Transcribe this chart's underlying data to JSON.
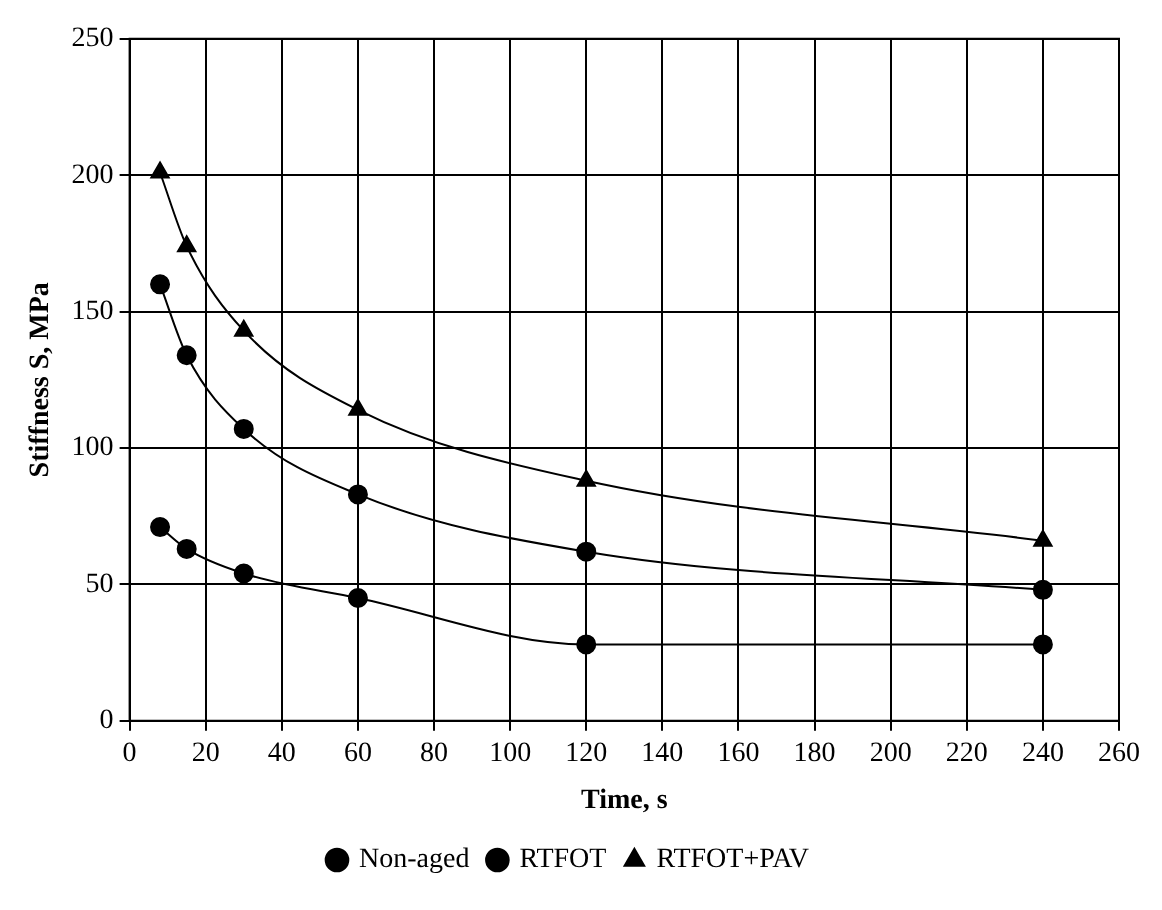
{
  "chart_data": {
    "type": "line",
    "xlabel": "Time, s",
    "ylabel": "Stiffness S, MPa",
    "x": [
      8,
      15,
      30,
      60,
      120,
      240
    ],
    "series": [
      {
        "name": "Non-aged",
        "color": "#000000",
        "marker": "circle",
        "values": [
          71,
          63,
          54,
          45,
          28,
          28
        ]
      },
      {
        "name": "RTFOT",
        "color": "#000000",
        "marker": "circle",
        "values": [
          160,
          134,
          107,
          83,
          62,
          48
        ]
      },
      {
        "name": "RTFOT+PAV",
        "color": "#000000",
        "marker": "triangle",
        "values": [
          201,
          174,
          143,
          114,
          88,
          66
        ]
      }
    ],
    "xlim": [
      0,
      260
    ],
    "xticks": [
      0,
      20,
      40,
      60,
      80,
      100,
      120,
      140,
      160,
      180,
      200,
      220,
      240,
      260
    ],
    "ylim": [
      0,
      250
    ],
    "yticks": [
      0,
      50,
      100,
      150,
      200,
      250
    ],
    "grid": true,
    "legend": "bottom",
    "line_style": "solid"
  }
}
